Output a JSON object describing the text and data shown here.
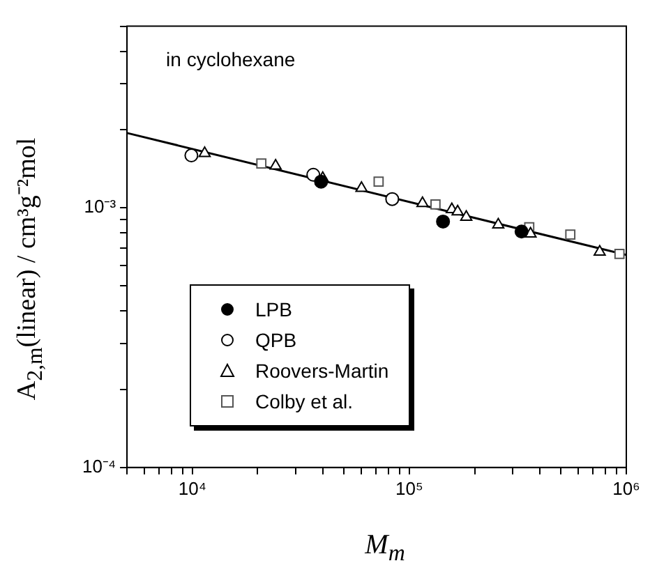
{
  "chart_data": {
    "type": "scatter",
    "xlabel": "M$_{m}$",
    "ylabel": "A$_{2,m}$(linear) / cm³g⁻²mol",
    "annotations": [
      "in cyclohexane"
    ],
    "log": "xy",
    "grid": false,
    "legend": "bottom left",
    "xlim": [
      5000,
      1000000
    ],
    "ylim": [
      0.0001,
      0.005
    ],
    "xticks": [
      {
        "value": 5000,
        "label": null
      },
      {
        "value": 6000,
        "label": null
      },
      {
        "value": 7000,
        "label": null
      },
      {
        "value": 8000,
        "label": null
      },
      {
        "value": 9000,
        "label": null
      },
      {
        "value": 10000,
        "label": "10⁴"
      },
      {
        "value": 20000,
        "label": null
      },
      {
        "value": 30000,
        "label": null
      },
      {
        "value": 40000,
        "label": null
      },
      {
        "value": 50000,
        "label": null
      },
      {
        "value": 60000,
        "label": null
      },
      {
        "value": 70000,
        "label": null
      },
      {
        "value": 80000,
        "label": null
      },
      {
        "value": 90000,
        "label": null
      },
      {
        "value": 100000,
        "label": "10⁵"
      },
      {
        "value": 200000,
        "label": null
      },
      {
        "value": 300000,
        "label": null
      },
      {
        "value": 400000,
        "label": null
      },
      {
        "value": 500000,
        "label": null
      },
      {
        "value": 600000,
        "label": null
      },
      {
        "value": 700000,
        "label": null
      },
      {
        "value": 800000,
        "label": null
      },
      {
        "value": 900000,
        "label": null
      },
      {
        "value": 1000000,
        "label": "10⁶"
      }
    ],
    "yticks": [
      {
        "value": 0.0001,
        "label": "10⁻⁴"
      },
      {
        "value": 0.0002,
        "label": null
      },
      {
        "value": 0.0003,
        "label": null
      },
      {
        "value": 0.0004,
        "label": null
      },
      {
        "value": 0.0005,
        "label": null
      },
      {
        "value": 0.0006,
        "label": null
      },
      {
        "value": 0.0007,
        "label": null
      },
      {
        "value": 0.0008,
        "label": null
      },
      {
        "value": 0.0009,
        "label": null
      },
      {
        "value": 0.001,
        "label": "10⁻³"
      },
      {
        "value": 0.002,
        "label": null
      },
      {
        "value": 0.003,
        "label": null
      },
      {
        "value": 0.004,
        "label": null
      },
      {
        "value": 0.005,
        "label": null
      }
    ],
    "series": [
      {
        "name": "LPB",
        "color": "#000000",
        "marker": "circle",
        "colors": [
          "#000000",
          "#000000",
          "#000000"
        ],
        "x": [
          39200,
          143000,
          329000
        ],
        "values": [
          0.00126,
          0.000885,
          0.00081
        ]
      },
      {
        "name": "QPB",
        "color": "#000000",
        "marker": "circle",
        "x": [
          9900,
          36100,
          83400
        ],
        "values": [
          0.00159,
          0.00134,
          0.00108
        ]
      },
      {
        "name": "Roovers-Martin",
        "color": "#000000",
        "marker": "triangle",
        "x": [
          11400,
          24200,
          39900,
          60200,
          115000,
          157000,
          167000,
          183000,
          257000,
          362000,
          754000
        ],
        "values": [
          0.00162,
          0.00145,
          0.0013,
          0.00119,
          0.00104,
          0.000985,
          0.000966,
          0.00092,
          0.00086,
          0.000794,
          0.000676
        ]
      },
      {
        "name": "Colby et al.",
        "color": "#555555",
        "marker": "square",
        "x": [
          20800,
          72200,
          132000,
          357000,
          552000,
          930000
        ],
        "values": [
          0.00148,
          0.00126,
          0.00103,
          0.000841,
          0.000788,
          0.000664
        ]
      },
      {
        "type": "line",
        "color": "#000000",
        "marker": "none",
        "line_style": "solid",
        "x": [
          5000,
          1000000
        ],
        "values": [
          0.00194,
          0.000658
        ]
      }
    ]
  }
}
